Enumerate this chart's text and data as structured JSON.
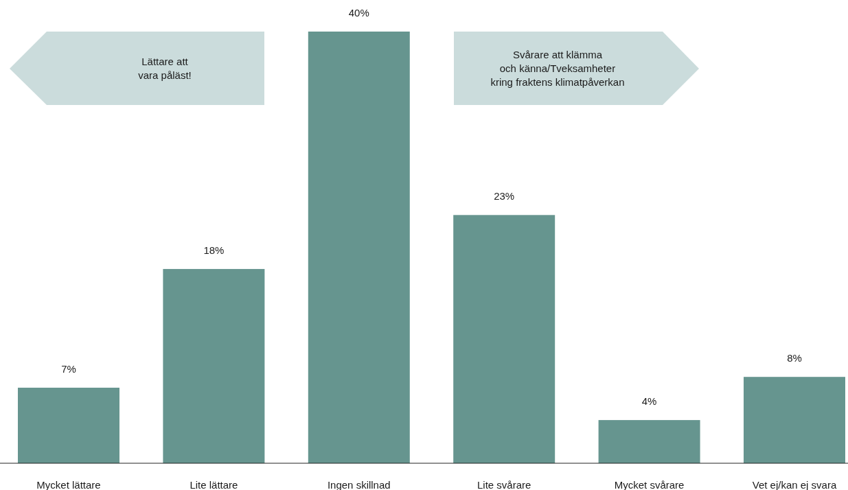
{
  "chart_data": {
    "type": "bar",
    "categories": [
      "Mycket lättare",
      "Lite lättare",
      "Ingen skillnad",
      "Lite svårare",
      "Mycket svårare",
      "Vet ej/kan ej svara"
    ],
    "values": [
      7,
      18,
      40,
      23,
      4,
      8
    ],
    "value_labels": [
      "7%",
      "18%",
      "40%",
      "23%",
      "4%",
      "8%"
    ],
    "color": "#66958f",
    "annotations": [
      "Lättare att\nvara påläst!",
      "Svårare att klämma\noch känna/Tveksamheter\nkring fraktens klimatpåverkan"
    ]
  }
}
